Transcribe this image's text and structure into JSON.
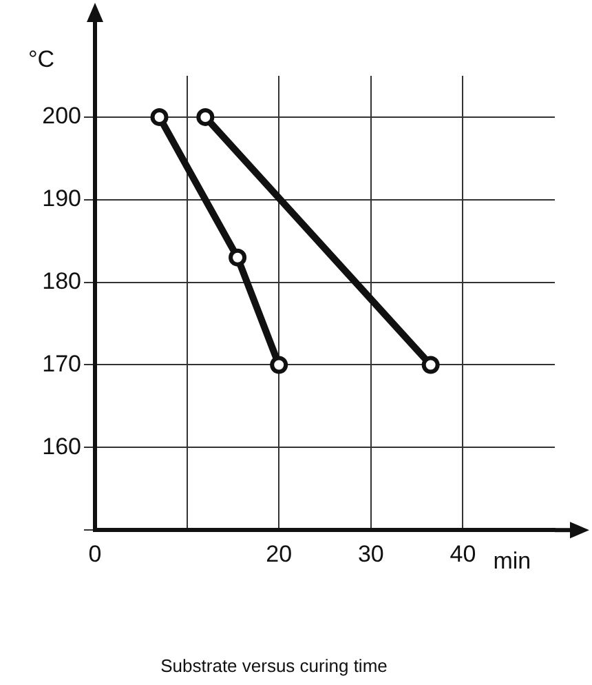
{
  "chart_data": {
    "type": "line",
    "title": "Substrate versus curing time",
    "xlabel": "min",
    "ylabel": "°C",
    "xlim": [
      0,
      50
    ],
    "ylim": [
      150,
      205
    ],
    "xticks": [
      0,
      {
        "value": 10,
        "label": null
      },
      20,
      30,
      40
    ],
    "yticks": [
      {
        "value": 150,
        "label": null
      },
      160,
      170,
      180,
      190,
      200
    ],
    "grid": true,
    "legend": false,
    "marker": "circle",
    "line_style": "solid",
    "series": [
      {
        "color": "#111111",
        "x": [
          7,
          15.5,
          20
        ],
        "values": [
          200,
          183,
          170
        ]
      },
      {
        "color": "#111111",
        "x": [
          12,
          36.5
        ],
        "values": [
          200,
          170
        ]
      }
    ]
  }
}
